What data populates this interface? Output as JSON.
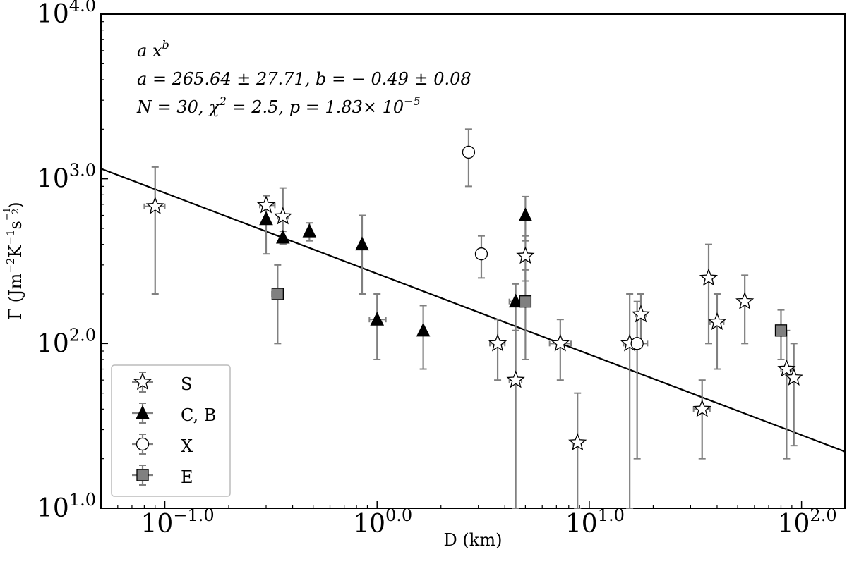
{
  "chart_data": {
    "type": "scatter",
    "xscale": "log",
    "yscale": "log",
    "xlim": [
      0.05,
      160
    ],
    "ylim": [
      10,
      10000
    ],
    "xticks": [
      {
        "value": 0.1,
        "label": "10",
        "exp": "−1.0"
      },
      {
        "value": 1,
        "label": "10",
        "exp": "0.0"
      },
      {
        "value": 10,
        "label": "10",
        "exp": "1.0"
      },
      {
        "value": 100,
        "label": "10",
        "exp": "2.0"
      }
    ],
    "yticks": [
      {
        "value": 10,
        "label": "10",
        "exp": "1.0"
      },
      {
        "value": 100,
        "label": "10",
        "exp": "2.0"
      },
      {
        "value": 1000,
        "label": "10",
        "exp": "3.0"
      },
      {
        "value": 10000,
        "label": "10",
        "exp": "4.0"
      }
    ],
    "xlabel": "D  (km)",
    "ylabel": {
      "symbol": "Γ",
      "units": "(Jm",
      "e1": "−2",
      "k": "K",
      "e2": "−1",
      "s": "s",
      "e3": "−1",
      "e3den": "2",
      "close": ")"
    },
    "annotation": {
      "line1": {
        "base": "a x",
        "exp": "b"
      },
      "line2": "a  =  265.64  ±   27.71,  b  = − 0.49  ±   0.08",
      "line3": {
        "base": "N   =  30, χ",
        "exp1": "2",
        "mid": " =  2.5,  p  =  1.83× 10",
        "exp2": "−5"
      }
    },
    "fit": {
      "a": 265.64,
      "b": -0.49,
      "x_range": [
        0.05,
        160
      ]
    },
    "legend": {
      "placement": "lower-left",
      "entries": [
        {
          "label": "S",
          "marker": "star",
          "color": "#ffffff"
        },
        {
          "label": "C, B",
          "marker": "triangle",
          "color": "#000000"
        },
        {
          "label": "X",
          "marker": "circle",
          "color": "#ffffff"
        },
        {
          "label": "E",
          "marker": "square",
          "color": "#808080"
        }
      ]
    },
    "grid": false,
    "series": [
      {
        "name": "S",
        "marker": "star",
        "points": [
          {
            "x": 0.09,
            "y": 680,
            "ylo": 200,
            "yhi": 1180,
            "xlo": 0.08,
            "xhi": 0.1
          },
          {
            "x": 0.3,
            "y": 690,
            "ylo": 580,
            "yhi": 790,
            "xlo": 0.28,
            "xhi": 0.33
          },
          {
            "x": 0.36,
            "y": 590,
            "ylo": 400,
            "yhi": 880,
            "xlo": 0.34,
            "xhi": 0.38
          },
          {
            "x": 3.7,
            "y": 100,
            "ylo": 60,
            "yhi": 140,
            "xlo": 3.4,
            "xhi": 4.0
          },
          {
            "x": 4.5,
            "y": 60,
            "ylo": 10,
            "yhi": 120,
            "xlo": 4.2,
            "xhi": 4.8
          },
          {
            "x": 5.0,
            "y": 340,
            "ylo": 240,
            "yhi": 450,
            "xlo": 4.8,
            "xhi": 5.2
          },
          {
            "x": 7.3,
            "y": 100,
            "ylo": 60,
            "yhi": 140,
            "xlo": 6.5,
            "xhi": 8.2
          },
          {
            "x": 8.8,
            "y": 25,
            "ylo": 10,
            "yhi": 50,
            "xlo": 8.4,
            "xhi": 9.2
          },
          {
            "x": 15.5,
            "y": 100,
            "ylo": 10,
            "yhi": 200,
            "xlo": 14.5,
            "xhi": 16.5
          },
          {
            "x": 17.5,
            "y": 150,
            "ylo": 100,
            "yhi": 200,
            "xlo": 16.5,
            "xhi": 18.5
          },
          {
            "x": 34,
            "y": 40,
            "ylo": 20,
            "yhi": 60,
            "xlo": 31,
            "xhi": 37
          },
          {
            "x": 36.5,
            "y": 250,
            "ylo": 100,
            "yhi": 400,
            "xlo": 35,
            "xhi": 38
          },
          {
            "x": 40,
            "y": 135,
            "ylo": 70,
            "yhi": 200,
            "xlo": 37,
            "xhi": 43
          },
          {
            "x": 54,
            "y": 180,
            "ylo": 100,
            "yhi": 260,
            "xlo": 52,
            "xhi": 56
          },
          {
            "x": 85,
            "y": 70,
            "ylo": 20,
            "yhi": 120,
            "xlo": 80,
            "xhi": 90
          },
          {
            "x": 92,
            "y": 62,
            "ylo": 24,
            "yhi": 100,
            "xlo": 88,
            "xhi": 96
          }
        ]
      },
      {
        "name": "C, B",
        "marker": "triangle",
        "points": [
          {
            "x": 0.3,
            "y": 570,
            "ylo": 350,
            "yhi": 790
          },
          {
            "x": 0.36,
            "y": 440,
            "ylo": 400,
            "yhi": 480
          },
          {
            "x": 0.48,
            "y": 480,
            "ylo": 420,
            "yhi": 540
          },
          {
            "x": 0.85,
            "y": 400,
            "ylo": 200,
            "yhi": 600
          },
          {
            "x": 1.0,
            "y": 140,
            "ylo": 80,
            "yhi": 200,
            "xlo": 0.92,
            "xhi": 1.1
          },
          {
            "x": 1.65,
            "y": 120,
            "ylo": 70,
            "yhi": 170
          },
          {
            "x": 4.5,
            "y": 180,
            "ylo": 120,
            "yhi": 230,
            "xlo": 4.2,
            "xhi": 4.8
          },
          {
            "x": 5.0,
            "y": 600,
            "ylo": 420,
            "yhi": 780
          }
        ]
      },
      {
        "name": "X",
        "marker": "circle",
        "points": [
          {
            "x": 2.7,
            "y": 1450,
            "ylo": 900,
            "yhi": 2000
          },
          {
            "x": 3.1,
            "y": 350,
            "ylo": 250,
            "yhi": 450
          },
          {
            "x": 16.8,
            "y": 100,
            "ylo": 20,
            "yhi": 180,
            "xlo": 15.0,
            "xhi": 18.8
          }
        ]
      },
      {
        "name": "E",
        "marker": "square",
        "points": [
          {
            "x": 0.34,
            "y": 200,
            "ylo": 100,
            "yhi": 300,
            "xlo": 0.32,
            "xhi": 0.36
          },
          {
            "x": 5.0,
            "y": 180,
            "ylo": 80,
            "yhi": 280,
            "xlo": 4.8,
            "xhi": 5.2
          },
          {
            "x": 80,
            "y": 120,
            "ylo": 80,
            "yhi": 160,
            "xlo": 76,
            "xhi": 84
          }
        ]
      }
    ]
  }
}
